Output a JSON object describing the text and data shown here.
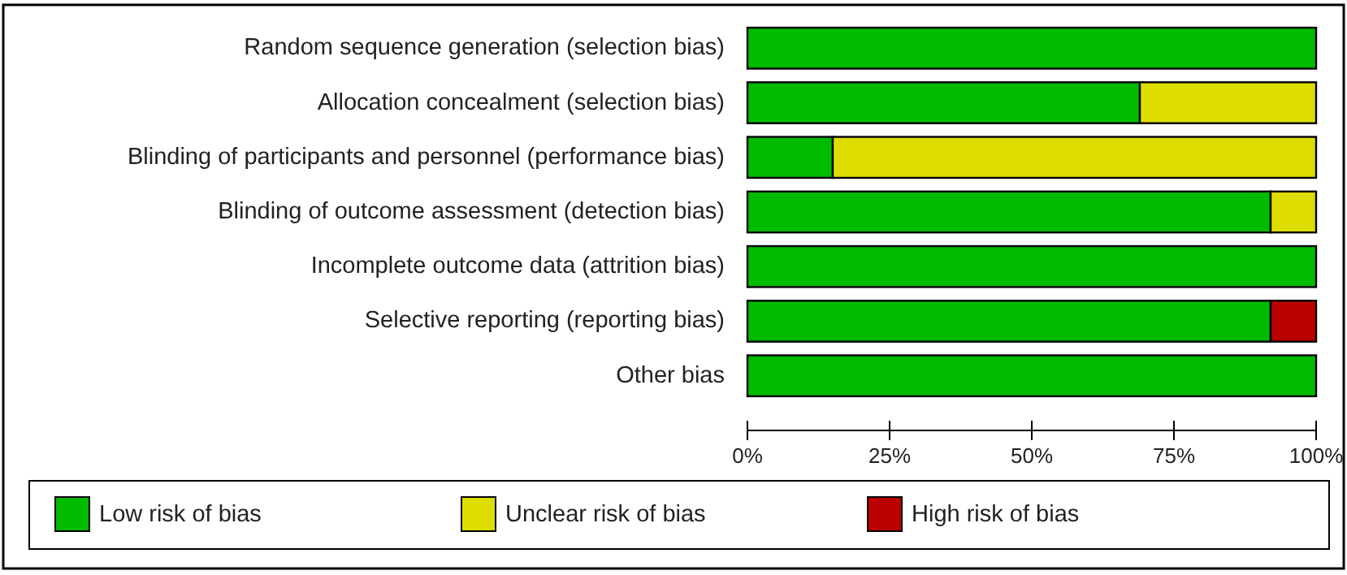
{
  "chart_data": {
    "type": "bar",
    "orientation": "horizontal",
    "stacked": true,
    "categories": [
      "Random sequence generation (selection bias)",
      "Allocation concealment (selection bias)",
      "Blinding of participants and personnel (performance bias)",
      "Blinding of outcome assessment (detection bias)",
      "Incomplete outcome data (attrition bias)",
      "Selective reporting (reporting bias)",
      "Other bias"
    ],
    "series": [
      {
        "name": "Low risk of bias",
        "color": "#00bb00",
        "values": [
          100,
          69,
          15,
          92,
          100,
          92,
          100
        ]
      },
      {
        "name": "Unclear risk of bias",
        "color": "#dddd00",
        "values": [
          0,
          31,
          85,
          8,
          0,
          0,
          0
        ]
      },
      {
        "name": "High risk of bias",
        "color": "#bb0000",
        "values": [
          0,
          0,
          0,
          0,
          0,
          8,
          0
        ]
      }
    ],
    "xlim": [
      0,
      100
    ],
    "xticks": [
      {
        "value": 0,
        "label": "0%"
      },
      {
        "value": 25,
        "label": "25%"
      },
      {
        "value": 50,
        "label": "50%"
      },
      {
        "value": 75,
        "label": "75%"
      },
      {
        "value": 100,
        "label": "100%"
      }
    ],
    "legend": "bottom",
    "grid": false
  }
}
